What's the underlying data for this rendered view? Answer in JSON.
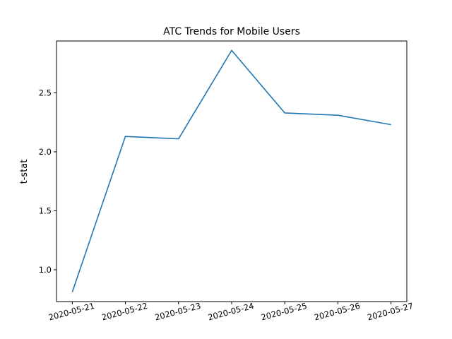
{
  "chart_data": {
    "type": "line",
    "title": "ATC Trends for Mobile Users",
    "xlabel": "",
    "ylabel": "t-stat",
    "categories": [
      "2020-05-21",
      "2020-05-22",
      "2020-05-23",
      "2020-05-24",
      "2020-05-25",
      "2020-05-26",
      "2020-05-27"
    ],
    "series": [
      {
        "values": [
          0.81,
          2.13,
          2.11,
          2.86,
          2.33,
          2.31,
          2.23
        ],
        "color": "#1f77b4"
      }
    ],
    "ylim": [
      0.73,
      2.94
    ],
    "yticks": [
      1.0,
      1.5,
      2.0,
      2.5
    ],
    "ytick_labels": [
      "1.0",
      "1.5",
      "2.0",
      "2.5"
    ],
    "grid": false,
    "legend": false
  }
}
